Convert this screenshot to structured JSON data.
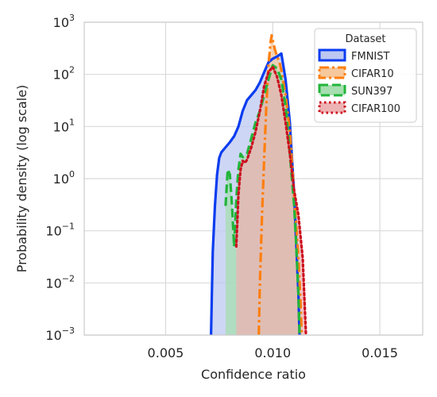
{
  "chart_data": {
    "type": "area",
    "xlabel": "Confidence ratio",
    "ylabel": "Probability density (log scale)",
    "xlim": [
      0.0012,
      0.017
    ],
    "ylim_log10": [
      -3,
      3
    ],
    "yscale": "log",
    "grid": true,
    "xticks": [
      0.005,
      0.01,
      0.015
    ],
    "xtick_labels": [
      "0.005",
      "0.010",
      "0.015"
    ],
    "ytick_exponents": [
      -3,
      -2,
      -1,
      0,
      1,
      2,
      3
    ],
    "ytick_base": "10",
    "legend": {
      "title": "Dataset",
      "placement": "top-right"
    },
    "series": [
      {
        "name": "FMNIST",
        "color": "#0a3cf0",
        "fill": "#bcc8f2",
        "linestyle": "solid",
        "x": [
          0.00712,
          0.00715,
          0.0072,
          0.0073,
          0.0074,
          0.0075,
          0.0076,
          0.0078,
          0.008,
          0.0082,
          0.0084,
          0.0086,
          0.0088,
          0.009,
          0.0092,
          0.0094,
          0.0096,
          0.0098,
          0.01,
          0.0102,
          0.0104,
          0.0106,
          0.0108,
          0.011,
          0.0112,
          0.01125
        ],
        "y": [
          0.001,
          0.004,
          0.04,
          0.3,
          1.2,
          2.5,
          3.2,
          4.0,
          5.0,
          6.5,
          10,
          20,
          32,
          40,
          50,
          70,
          110,
          170,
          200,
          220,
          250,
          80,
          12,
          0.5,
          0.006,
          0.001
        ]
      },
      {
        "name": "CIFAR10",
        "color": "#ff7f0e",
        "fill": "#f6c89c",
        "linestyle": "dashdot",
        "x": [
          0.00935,
          0.0094,
          0.0095,
          0.0096,
          0.0097,
          0.0098,
          0.0099,
          0.00995,
          0.01,
          0.0101,
          0.0102,
          0.0103,
          0.0104,
          0.0106,
          0.0108,
          0.011,
          0.0112,
          0.0113,
          0.01135
        ],
        "y": [
          0.001,
          0.01,
          0.2,
          2.5,
          25,
          150,
          420,
          560,
          450,
          300,
          220,
          180,
          120,
          40,
          8,
          0.5,
          0.03,
          0.004,
          0.001
        ]
      },
      {
        "name": "SUN397",
        "color": "#22b53a",
        "fill": "#a6deb0",
        "linestyle": "dashed",
        "x": [
          0.0078,
          0.0079,
          0.008,
          0.0081,
          0.0082,
          0.0083,
          0.0084,
          0.0085,
          0.0086,
          0.0088,
          0.009,
          0.0092,
          0.0094,
          0.0096,
          0.0098,
          0.01,
          0.0102,
          0.0104,
          0.0106,
          0.0108,
          0.011,
          0.0111,
          0.0112,
          0.01125
        ],
        "y": [
          0.3,
          1.5,
          1.2,
          0.3,
          0.05,
          0.4,
          1.5,
          3.0,
          2.6,
          3.0,
          6.0,
          12,
          20,
          40,
          80,
          150,
          130,
          80,
          25,
          3.0,
          0.3,
          0.05,
          0.006,
          0.001
        ]
      },
      {
        "name": "CIFAR100",
        "color": "#cc0f1f",
        "fill": "#eeb3b3",
        "linestyle": "dotted",
        "x": [
          0.0083,
          0.0084,
          0.0085,
          0.0086,
          0.0087,
          0.0088,
          0.009,
          0.0092,
          0.0094,
          0.0096,
          0.0098,
          0.01,
          0.0102,
          0.0104,
          0.0106,
          0.0108,
          0.011,
          0.0112,
          0.0114,
          0.01155
        ],
        "y": [
          0.05,
          0.5,
          1.5,
          2.2,
          2.0,
          2.3,
          4.0,
          8.0,
          20,
          60,
          110,
          140,
          90,
          40,
          12,
          3.0,
          0.6,
          0.2,
          0.03,
          0.001
        ]
      }
    ]
  }
}
